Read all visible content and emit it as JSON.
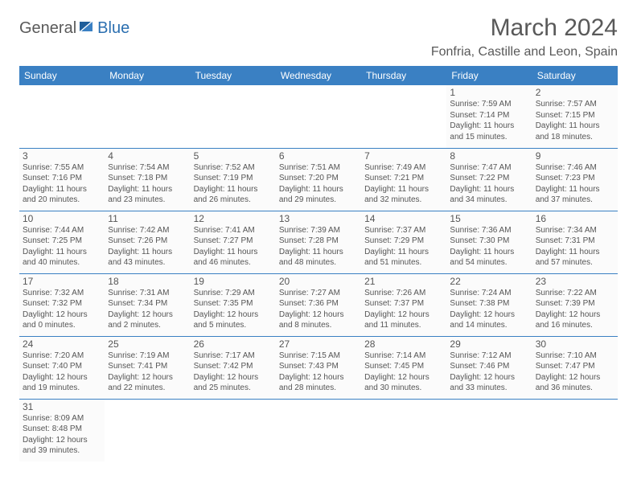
{
  "logo": {
    "part1": "General",
    "part2": "Blue"
  },
  "title": "March 2024",
  "location": "Fonfria, Castille and Leon, Spain",
  "colors": {
    "header_bg": "#3a80c3",
    "header_text": "#ffffff",
    "cell_border": "#3a80c3",
    "text": "#555555",
    "title_text": "#595959",
    "logo_gray": "#5a5a5a",
    "logo_blue": "#2b6fb0",
    "background": "#ffffff",
    "cell_bg": "#fbfbfb"
  },
  "day_headers": [
    "Sunday",
    "Monday",
    "Tuesday",
    "Wednesday",
    "Thursday",
    "Friday",
    "Saturday"
  ],
  "weeks": [
    [
      null,
      null,
      null,
      null,
      null,
      {
        "n": "1",
        "sr": "7:59 AM",
        "ss": "7:14 PM",
        "dh": "11",
        "dm": "15"
      },
      {
        "n": "2",
        "sr": "7:57 AM",
        "ss": "7:15 PM",
        "dh": "11",
        "dm": "18"
      }
    ],
    [
      {
        "n": "3",
        "sr": "7:55 AM",
        "ss": "7:16 PM",
        "dh": "11",
        "dm": "20"
      },
      {
        "n": "4",
        "sr": "7:54 AM",
        "ss": "7:18 PM",
        "dh": "11",
        "dm": "23"
      },
      {
        "n": "5",
        "sr": "7:52 AM",
        "ss": "7:19 PM",
        "dh": "11",
        "dm": "26"
      },
      {
        "n": "6",
        "sr": "7:51 AM",
        "ss": "7:20 PM",
        "dh": "11",
        "dm": "29"
      },
      {
        "n": "7",
        "sr": "7:49 AM",
        "ss": "7:21 PM",
        "dh": "11",
        "dm": "32"
      },
      {
        "n": "8",
        "sr": "7:47 AM",
        "ss": "7:22 PM",
        "dh": "11",
        "dm": "34"
      },
      {
        "n": "9",
        "sr": "7:46 AM",
        "ss": "7:23 PM",
        "dh": "11",
        "dm": "37"
      }
    ],
    [
      {
        "n": "10",
        "sr": "7:44 AM",
        "ss": "7:25 PM",
        "dh": "11",
        "dm": "40"
      },
      {
        "n": "11",
        "sr": "7:42 AM",
        "ss": "7:26 PM",
        "dh": "11",
        "dm": "43"
      },
      {
        "n": "12",
        "sr": "7:41 AM",
        "ss": "7:27 PM",
        "dh": "11",
        "dm": "46"
      },
      {
        "n": "13",
        "sr": "7:39 AM",
        "ss": "7:28 PM",
        "dh": "11",
        "dm": "48"
      },
      {
        "n": "14",
        "sr": "7:37 AM",
        "ss": "7:29 PM",
        "dh": "11",
        "dm": "51"
      },
      {
        "n": "15",
        "sr": "7:36 AM",
        "ss": "7:30 PM",
        "dh": "11",
        "dm": "54"
      },
      {
        "n": "16",
        "sr": "7:34 AM",
        "ss": "7:31 PM",
        "dh": "11",
        "dm": "57"
      }
    ],
    [
      {
        "n": "17",
        "sr": "7:32 AM",
        "ss": "7:32 PM",
        "dh": "12",
        "dm": "0"
      },
      {
        "n": "18",
        "sr": "7:31 AM",
        "ss": "7:34 PM",
        "dh": "12",
        "dm": "2"
      },
      {
        "n": "19",
        "sr": "7:29 AM",
        "ss": "7:35 PM",
        "dh": "12",
        "dm": "5"
      },
      {
        "n": "20",
        "sr": "7:27 AM",
        "ss": "7:36 PM",
        "dh": "12",
        "dm": "8"
      },
      {
        "n": "21",
        "sr": "7:26 AM",
        "ss": "7:37 PM",
        "dh": "12",
        "dm": "11"
      },
      {
        "n": "22",
        "sr": "7:24 AM",
        "ss": "7:38 PM",
        "dh": "12",
        "dm": "14"
      },
      {
        "n": "23",
        "sr": "7:22 AM",
        "ss": "7:39 PM",
        "dh": "12",
        "dm": "16"
      }
    ],
    [
      {
        "n": "24",
        "sr": "7:20 AM",
        "ss": "7:40 PM",
        "dh": "12",
        "dm": "19"
      },
      {
        "n": "25",
        "sr": "7:19 AM",
        "ss": "7:41 PM",
        "dh": "12",
        "dm": "22"
      },
      {
        "n": "26",
        "sr": "7:17 AM",
        "ss": "7:42 PM",
        "dh": "12",
        "dm": "25"
      },
      {
        "n": "27",
        "sr": "7:15 AM",
        "ss": "7:43 PM",
        "dh": "12",
        "dm": "28"
      },
      {
        "n": "28",
        "sr": "7:14 AM",
        "ss": "7:45 PM",
        "dh": "12",
        "dm": "30"
      },
      {
        "n": "29",
        "sr": "7:12 AM",
        "ss": "7:46 PM",
        "dh": "12",
        "dm": "33"
      },
      {
        "n": "30",
        "sr": "7:10 AM",
        "ss": "7:47 PM",
        "dh": "12",
        "dm": "36"
      }
    ],
    [
      {
        "n": "31",
        "sr": "8:09 AM",
        "ss": "8:48 PM",
        "dh": "12",
        "dm": "39"
      },
      null,
      null,
      null,
      null,
      null,
      null
    ]
  ],
  "labels": {
    "sunrise": "Sunrise:",
    "sunset": "Sunset:",
    "daylight": "Daylight:",
    "hours": "hours",
    "and": "and",
    "minutes": "minutes."
  }
}
